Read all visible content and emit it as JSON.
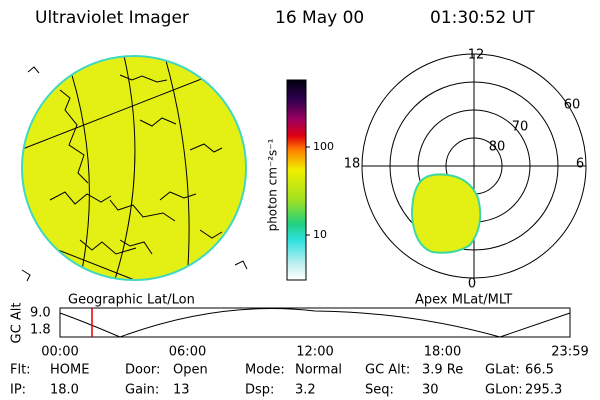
{
  "header": {
    "title": "Ultraviolet Imager",
    "date": "16 May 00",
    "time": "01:30:52 UT"
  },
  "geo_panel": {
    "label": "Geographic Lat/Lon"
  },
  "colorbar": {
    "label": "photon cm⁻²s⁻¹",
    "ticks": [
      "100",
      "10"
    ]
  },
  "polar_panel": {
    "label": "Apex MLat/MLT",
    "mlt_labels": [
      "12",
      "18",
      "6",
      "0"
    ],
    "lat_labels": [
      "60",
      "70",
      "80"
    ]
  },
  "timeline": {
    "axis_label": "GC Alt",
    "y_labels": [
      "9.0",
      "1.8"
    ],
    "x_labels": [
      "00:00",
      "06:00",
      "12:00",
      "18:00",
      "23:59"
    ]
  },
  "footer": {
    "rows": [
      [
        {
          "label": "Flt:",
          "value": "HOME"
        },
        {
          "label": "Door:",
          "value": "Open"
        },
        {
          "label": "Mode:",
          "value": "Normal"
        },
        {
          "label": "GC Alt:",
          "value": "3.9 Re"
        },
        {
          "label": "GLat:",
          "value": "66.5"
        }
      ],
      [
        {
          "label": "IP:",
          "value": "18.0"
        },
        {
          "label": "Gain:",
          "value": "13"
        },
        {
          "label": "Dsp:",
          "value": "3.2"
        },
        {
          "label": "Seq:",
          "value": "30"
        },
        {
          "label": "GLon:",
          "value": "295.3"
        }
      ]
    ]
  }
}
